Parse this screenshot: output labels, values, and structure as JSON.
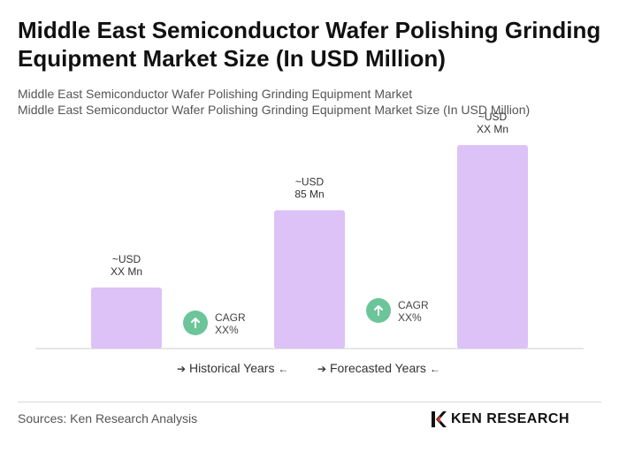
{
  "title": "Middle East Semiconductor Wafer Polishing Grinding Equipment Market Size (In USD Million)",
  "subtitle_1": "Middle East Semiconductor Wafer Polishing Grinding Equipment Market",
  "subtitle_2": "Middle East Semiconductor Wafer Polishing Grinding Equipment Market Size (In USD Million)",
  "colors": {
    "bar": "#dcc2f7",
    "cagr_icon": "#6cc59a",
    "axis": "#cccccc"
  },
  "chart_data": {
    "type": "bar",
    "categories": [
      "",
      "",
      ""
    ],
    "values": [
      15,
      34,
      50
    ],
    "value_labels": [
      [
        "~USD",
        "XX Mn"
      ],
      [
        "~USD",
        "85 Mn"
      ],
      [
        "~USD",
        "XX Mn"
      ]
    ],
    "cagr_labels": [
      [
        "CAGR",
        "XX%"
      ],
      [
        "CAGR",
        "XX%"
      ]
    ],
    "legend": [
      "Historical Years",
      "Forecasted Years"
    ],
    "ylim": [
      0,
      50
    ],
    "grid": false
  },
  "legend": {
    "historical_label": "Historical Years",
    "forecast_label": "Forecasted Years",
    "arrow_right": "➔",
    "arrow_left": "⇠"
  },
  "footer": {
    "source": "Sources: Ken Research Analysis",
    "logo_text": "KEN RESEARCH"
  },
  "icons": {
    "cagr": "arrow-up-icon",
    "logo": "ken-research-logo-icon"
  }
}
